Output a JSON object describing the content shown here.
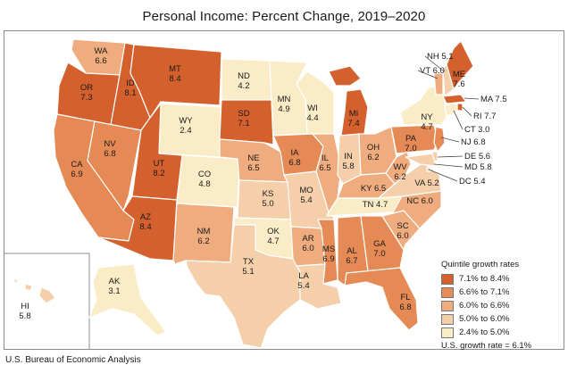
{
  "title": "Personal Income: Percent Change, 2019–2020",
  "source": "U.S. Bureau of Economic Analysis",
  "legend": {
    "title": "Quintile growth rates",
    "bins": [
      {
        "label": "7.1% to 8.4%",
        "color": "#d4602e"
      },
      {
        "label": "6.6% to 7.1%",
        "color": "#e58a55"
      },
      {
        "label": "6.0% to 6.6%",
        "color": "#efac7e"
      },
      {
        "label": "5.0% to 6.0%",
        "color": "#f5cfaa"
      },
      {
        "label": "2.4% to 5.0%",
        "color": "#fbecc8"
      }
    ],
    "note": "U.S. growth rate = 6.1%"
  },
  "states": [
    {
      "abbr": "WA",
      "value": "6.6",
      "bin": 2
    },
    {
      "abbr": "OR",
      "value": "7.3",
      "bin": 0
    },
    {
      "abbr": "CA",
      "value": "6.9",
      "bin": 1
    },
    {
      "abbr": "ID",
      "value": "8.1",
      "bin": 0
    },
    {
      "abbr": "NV",
      "value": "6.8",
      "bin": 1
    },
    {
      "abbr": "MT",
      "value": "8.4",
      "bin": 0
    },
    {
      "abbr": "WY",
      "value": "2.4",
      "bin": 4
    },
    {
      "abbr": "UT",
      "value": "8.2",
      "bin": 0
    },
    {
      "abbr": "AZ",
      "value": "8.4",
      "bin": 0
    },
    {
      "abbr": "CO",
      "value": "4.8",
      "bin": 4
    },
    {
      "abbr": "NM",
      "value": "6.2",
      "bin": 2
    },
    {
      "abbr": "ND",
      "value": "4.2",
      "bin": 4
    },
    {
      "abbr": "SD",
      "value": "7.1",
      "bin": 0
    },
    {
      "abbr": "NE",
      "value": "6.5",
      "bin": 2
    },
    {
      "abbr": "KS",
      "value": "5.0",
      "bin": 3
    },
    {
      "abbr": "OK",
      "value": "4.7",
      "bin": 4
    },
    {
      "abbr": "TX",
      "value": "5.1",
      "bin": 3
    },
    {
      "abbr": "MN",
      "value": "4.9",
      "bin": 4
    },
    {
      "abbr": "IA",
      "value": "6.8",
      "bin": 1
    },
    {
      "abbr": "MO",
      "value": "5.4",
      "bin": 3
    },
    {
      "abbr": "AR",
      "value": "6.0",
      "bin": 2
    },
    {
      "abbr": "LA",
      "value": "5.4",
      "bin": 3
    },
    {
      "abbr": "WI",
      "value": "4.4",
      "bin": 4
    },
    {
      "abbr": "IL",
      "value": "6.5",
      "bin": 2
    },
    {
      "abbr": "MI",
      "value": "7.4",
      "bin": 0
    },
    {
      "abbr": "IN",
      "value": "5.8",
      "bin": 3
    },
    {
      "abbr": "OH",
      "value": "6.2",
      "bin": 2
    },
    {
      "abbr": "KY",
      "value": "6.5",
      "bin": 2
    },
    {
      "abbr": "TN",
      "value": "4.7",
      "bin": 4
    },
    {
      "abbr": "MS",
      "value": "6.9",
      "bin": 1
    },
    {
      "abbr": "AL",
      "value": "6.7",
      "bin": 1
    },
    {
      "abbr": "GA",
      "value": "7.0",
      "bin": 1
    },
    {
      "abbr": "FL",
      "value": "6.8",
      "bin": 1
    },
    {
      "abbr": "SC",
      "value": "6.0",
      "bin": 2
    },
    {
      "abbr": "NC",
      "value": "6.0",
      "bin": 2
    },
    {
      "abbr": "VA",
      "value": "5.2",
      "bin": 3
    },
    {
      "abbr": "WV",
      "value": "6.2",
      "bin": 2
    },
    {
      "abbr": "PA",
      "value": "7.0",
      "bin": 1
    },
    {
      "abbr": "NY",
      "value": "4.7",
      "bin": 4
    },
    {
      "abbr": "VT",
      "value": "6.0",
      "bin": 2
    },
    {
      "abbr": "NH",
      "value": "5.1",
      "bin": 3
    },
    {
      "abbr": "ME",
      "value": "7.6",
      "bin": 0
    },
    {
      "abbr": "MA",
      "value": "7.5",
      "bin": 0
    },
    {
      "abbr": "RI",
      "value": "7.7",
      "bin": 0
    },
    {
      "abbr": "CT",
      "value": "3.0",
      "bin": 4
    },
    {
      "abbr": "NJ",
      "value": "6.8",
      "bin": 1
    },
    {
      "abbr": "DE",
      "value": "5.6",
      "bin": 3
    },
    {
      "abbr": "MD",
      "value": "5.8",
      "bin": 3
    },
    {
      "abbr": "DC",
      "value": "5.4",
      "bin": 3
    },
    {
      "abbr": "AK",
      "value": "3.1",
      "bin": 4
    },
    {
      "abbr": "HI",
      "value": "5.8",
      "bin": 3
    }
  ]
}
